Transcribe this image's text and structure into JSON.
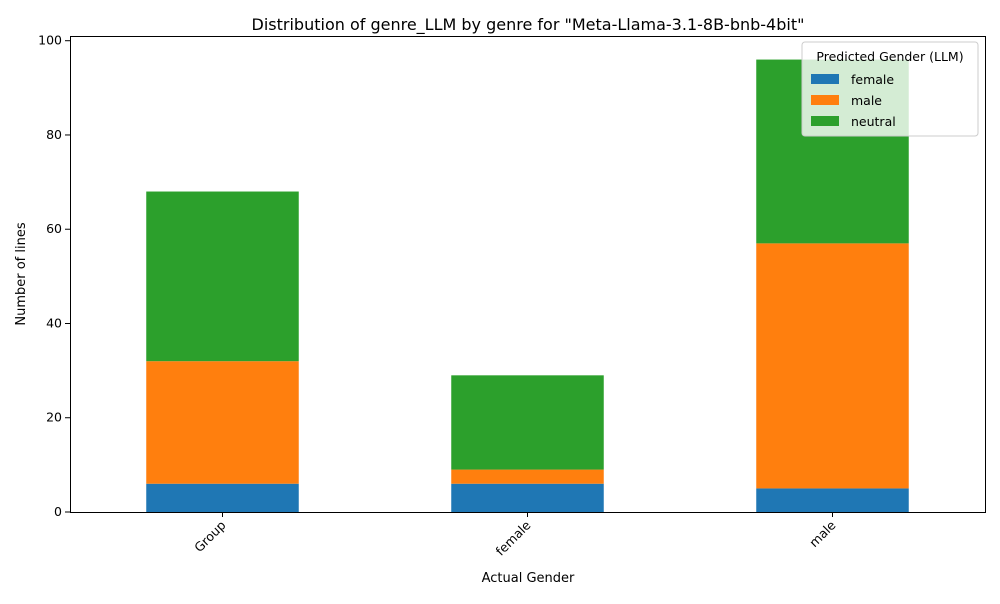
{
  "chart_data": {
    "type": "bar",
    "stacked": true,
    "title": "Distribution of genre_LLM by genre for \"Meta-Llama-3.1-8B-bnb-4bit\"",
    "xlabel": "Actual Gender",
    "ylabel": "Number of lines",
    "categories": [
      "Group",
      "female",
      "male"
    ],
    "series": [
      {
        "name": "female",
        "color": "#1f77b4",
        "values": [
          6,
          6,
          5
        ]
      },
      {
        "name": "male",
        "color": "#ff7f0e",
        "values": [
          26,
          3,
          52
        ]
      },
      {
        "name": "neutral",
        "color": "#2ca02c",
        "values": [
          36,
          20,
          39
        ]
      }
    ],
    "ylim": [
      0,
      101
    ],
    "yticks": [
      0,
      20,
      40,
      60,
      80,
      100
    ],
    "grid": false,
    "legend": {
      "title": "Predicted Gender (LLM)",
      "placement": "top-right"
    },
    "tick_rotation_x": 45
  }
}
